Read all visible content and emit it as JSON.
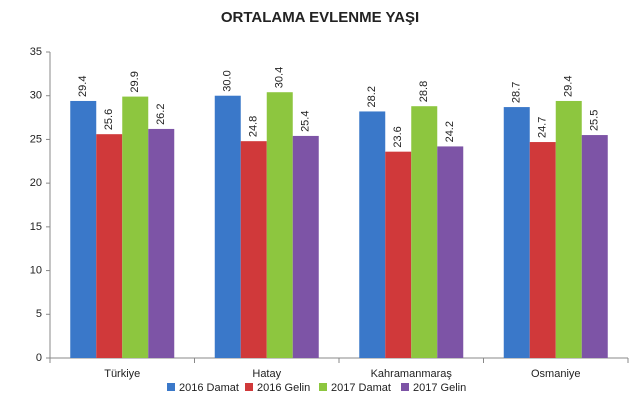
{
  "chart_data": {
    "type": "bar",
    "title": "ORTALAMA EVLENME YAŞI",
    "categories": [
      "Türkiye",
      "Hatay",
      "Kahramanmaraş",
      "Osmaniye"
    ],
    "series": [
      {
        "name": "2016 Damat",
        "color": "#3a78c9",
        "values": [
          29.4,
          30.0,
          28.2,
          28.7
        ],
        "value_labels": [
          "29.4",
          "30.0",
          "28.2",
          "28.7"
        ]
      },
      {
        "name": "2016 Gelin",
        "color": "#d0393a",
        "values": [
          25.6,
          24.8,
          23.6,
          24.7
        ],
        "value_labels": [
          "25.6",
          "24.8",
          "23.6",
          "24.7"
        ]
      },
      {
        "name": "2017 Damat",
        "color": "#8dc63f",
        "values": [
          29.9,
          30.4,
          28.8,
          29.4
        ],
        "value_labels": [
          "29.9",
          "30.4",
          "28.8",
          "29.4"
        ]
      },
      {
        "name": "2017 Gelin",
        "color": "#7d54a6",
        "values": [
          26.2,
          25.4,
          24.2,
          25.5
        ],
        "value_labels": [
          "26.2",
          "25.4",
          "24.2",
          "25.5"
        ]
      }
    ],
    "ylim": [
      0,
      35
    ],
    "yticks": [
      0,
      5,
      10,
      15,
      20,
      25,
      30,
      35
    ],
    "grid": false,
    "legend": "bottom"
  }
}
